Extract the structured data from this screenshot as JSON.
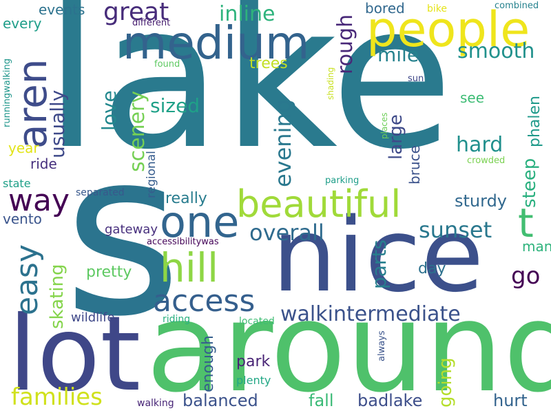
{
  "words": [
    {
      "text": "lake",
      "color": "#2a7a8e",
      "vertical": false
    },
    {
      "text": "s",
      "color": "#2b748e",
      "vertical": false
    },
    {
      "text": "nice",
      "color": "#3c508b",
      "vertical": false
    },
    {
      "text": "around",
      "color": "#4fc16b",
      "vertical": false
    },
    {
      "text": "lot",
      "color": "#3f4788",
      "vertical": false
    },
    {
      "text": "people",
      "color": "#efe51c",
      "vertical": false
    },
    {
      "text": "medium",
      "color": "#33638d",
      "vertical": false
    },
    {
      "text": "beautiful",
      "color": "#a0da39",
      "vertical": false
    },
    {
      "text": "one",
      "color": "#32658e",
      "vertical": false
    },
    {
      "text": "t",
      "color": "#42be71",
      "vertical": false
    },
    {
      "text": "hill",
      "color": "#8ed645",
      "vertical": false
    },
    {
      "text": "access",
      "color": "#355f8d",
      "vertical": false
    },
    {
      "text": "aren",
      "color": "#3e4c8a",
      "vertical": true
    },
    {
      "text": "easy",
      "color": "#2c728e",
      "vertical": true
    },
    {
      "text": "way",
      "color": "#440154",
      "vertical": false
    },
    {
      "text": "families",
      "color": "#d0e11c",
      "vertical": false
    },
    {
      "text": "walkintermediate",
      "color": "#3b528b",
      "vertical": false
    },
    {
      "text": "great",
      "color": "#472c7a",
      "vertical": false
    },
    {
      "text": "inline",
      "color": "#2eb37c",
      "vertical": false
    },
    {
      "text": "events",
      "color": "#2c728e",
      "vertical": false
    },
    {
      "text": "every",
      "color": "#1f9e89",
      "vertical": false
    },
    {
      "text": "usually",
      "color": "#3e4989",
      "vertical": true
    },
    {
      "text": "love",
      "color": "#23888e",
      "vertical": true
    },
    {
      "text": "scenery",
      "color": "#75d054",
      "vertical": true
    },
    {
      "text": "sized",
      "color": "#1fa188",
      "vertical": false
    },
    {
      "text": "evening",
      "color": "#2a788e",
      "vertical": true
    },
    {
      "text": "rough",
      "color": "#482878",
      "vertical": true
    },
    {
      "text": "mile",
      "color": "#26828e",
      "vertical": false
    },
    {
      "text": "smooth",
      "color": "#21918c",
      "vertical": false
    },
    {
      "text": "trees",
      "color": "#c2df23",
      "vertical": false
    },
    {
      "text": "bored",
      "color": "#31688e",
      "vertical": false
    },
    {
      "text": "bike",
      "color": "#e5e419",
      "vertical": false
    },
    {
      "text": "combined",
      "color": "#26828e",
      "vertical": false
    },
    {
      "text": "different",
      "color": "#482071",
      "vertical": false
    },
    {
      "text": "runningwalking",
      "color": "#1f968b",
      "vertical": true
    },
    {
      "text": "found",
      "color": "#5ec962",
      "vertical": false
    },
    {
      "text": "shading",
      "color": "#c8e020",
      "vertical": true
    },
    {
      "text": "see",
      "color": "#3dbc74",
      "vertical": false
    },
    {
      "text": "sun",
      "color": "#3f4788",
      "vertical": false
    },
    {
      "text": "phalen",
      "color": "#1f9a8a",
      "vertical": true
    },
    {
      "text": "large",
      "color": "#3e4a89",
      "vertical": true
    },
    {
      "text": "hard",
      "color": "#21908d",
      "vertical": false
    },
    {
      "text": "steep",
      "color": "#2ab07f",
      "vertical": true
    },
    {
      "text": "places",
      "color": "#6ece58",
      "vertical": true
    },
    {
      "text": "crowded",
      "color": "#7ad151",
      "vertical": false
    },
    {
      "text": "year",
      "color": "#e2e418",
      "vertical": false
    },
    {
      "text": "ride",
      "color": "#46307e",
      "vertical": false
    },
    {
      "text": "regional",
      "color": "#365c8d",
      "vertical": true
    },
    {
      "text": "bruce",
      "color": "#3b528b",
      "vertical": true
    },
    {
      "text": "sturdy",
      "color": "#31688e",
      "vertical": false
    },
    {
      "text": "state",
      "color": "#1fa088",
      "vertical": false
    },
    {
      "text": "parking",
      "color": "#1f9e89",
      "vertical": false
    },
    {
      "text": "separated",
      "color": "#38588c",
      "vertical": false
    },
    {
      "text": "really",
      "color": "#287c8e",
      "vertical": false
    },
    {
      "text": "vento",
      "color": "#3a548c",
      "vertical": false
    },
    {
      "text": "overall",
      "color": "#2f6b8e",
      "vertical": false
    },
    {
      "text": "parts",
      "color": "#277f8e",
      "vertical": true
    },
    {
      "text": "sunset",
      "color": "#2a788e",
      "vertical": false
    },
    {
      "text": "gateway",
      "color": "#472f7d",
      "vertical": false
    },
    {
      "text": "accessibilitywas",
      "color": "#450559",
      "vertical": false
    },
    {
      "text": "many",
      "color": "#2eb37c",
      "vertical": false
    },
    {
      "text": "go",
      "color": "#440154",
      "vertical": false
    },
    {
      "text": "skating",
      "color": "#84d44b",
      "vertical": true
    },
    {
      "text": "pretty",
      "color": "#5ec962",
      "vertical": false
    },
    {
      "text": "day",
      "color": "#2c718e",
      "vertical": false
    },
    {
      "text": "wildlife",
      "color": "#3f4889",
      "vertical": false
    },
    {
      "text": "riding",
      "color": "#29af7f",
      "vertical": false
    },
    {
      "text": "located",
      "color": "#3fbc73",
      "vertical": false
    },
    {
      "text": "always",
      "color": "#3a538b",
      "vertical": true
    },
    {
      "text": "enough",
      "color": "#355e8d",
      "vertical": true
    },
    {
      "text": "park",
      "color": "#482475",
      "vertical": false
    },
    {
      "text": "plenty",
      "color": "#22a785",
      "vertical": false
    },
    {
      "text": "going",
      "color": "#b5de2b",
      "vertical": true
    },
    {
      "text": "balanced",
      "color": "#3b528b",
      "vertical": false
    },
    {
      "text": "fall",
      "color": "#3aba76",
      "vertical": false
    },
    {
      "text": "badlake",
      "color": "#3d4e8a",
      "vertical": false
    },
    {
      "text": "hurt",
      "color": "#33638d",
      "vertical": false
    },
    {
      "text": "walking",
      "color": "#482677",
      "vertical": false
    }
  ]
}
